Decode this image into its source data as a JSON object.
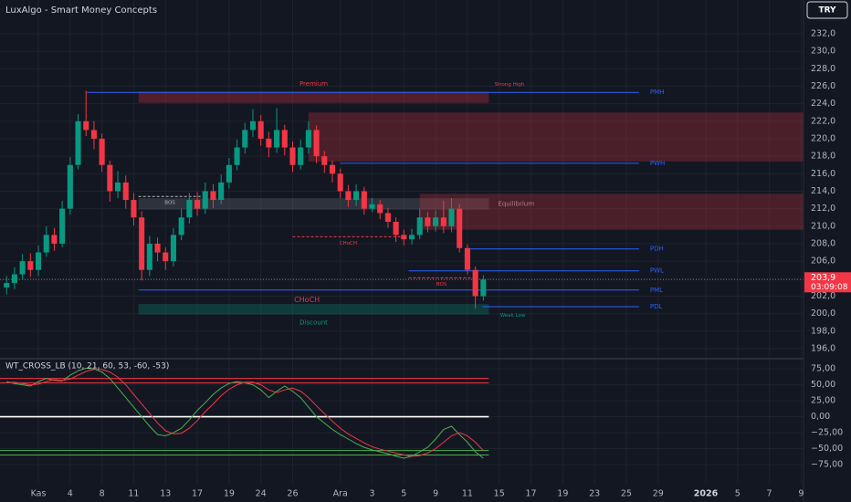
{
  "chart_data": {
    "type": "candlestick",
    "title": "LuxAlgo - Smart Money Concepts",
    "currency": "TRY",
    "last_price": {
      "value": 203.9,
      "label": "203,9"
    },
    "countdown": "03:09:08",
    "up_color": "#089981",
    "down_color": "#f23645",
    "grid": true,
    "xlim": [
      -4.83,
      96.3
    ],
    "xticks": [
      {
        "value": 0,
        "label": "Kas"
      },
      4,
      8,
      {
        "value": 12,
        "label": "11"
      },
      {
        "value": 16,
        "label": "13"
      },
      {
        "value": 20,
        "label": "17"
      },
      {
        "value": 24,
        "label": "19"
      },
      {
        "value": 28,
        "label": "24"
      },
      {
        "value": 32,
        "label": "26"
      },
      {
        "value": 38,
        "label": "Ara"
      },
      {
        "value": 42,
        "label": "3"
      },
      {
        "value": 46,
        "label": "5"
      },
      {
        "value": 50,
        "label": "9"
      },
      {
        "value": 54,
        "label": "11"
      },
      {
        "value": 58,
        "label": "15"
      },
      {
        "value": 62,
        "label": "17"
      },
      {
        "value": 66,
        "label": "19"
      },
      {
        "value": 70,
        "label": "23"
      },
      {
        "value": 74,
        "label": "25"
      },
      {
        "value": 78,
        "label": "29"
      },
      {
        "value": 84,
        "label": "2026"
      },
      {
        "value": 88,
        "label": "5"
      },
      {
        "value": 92,
        "label": "7"
      },
      {
        "value": 96,
        "label": "9"
      }
    ],
    "ylim": [
      194.85,
      235.86
    ],
    "yticks": [
      {
        "value": 196,
        "label": "196,0"
      },
      {
        "value": 198,
        "label": "198,0"
      },
      {
        "value": 200,
        "label": "200,0"
      },
      {
        "value": 202,
        "label": "202,0"
      },
      {
        "value": 204,
        "label": "204,0"
      },
      {
        "value": 206,
        "label": "206,0"
      },
      {
        "value": 208,
        "label": "208,0"
      },
      {
        "value": 210,
        "label": "210,0"
      },
      {
        "value": 212,
        "label": "212,0"
      },
      {
        "value": 214,
        "label": "214,0"
      },
      {
        "value": 216,
        "label": "216,0"
      },
      {
        "value": 218,
        "label": "218,0"
      },
      {
        "value": 220,
        "label": "220,0"
      },
      {
        "value": 222,
        "label": "222,0"
      },
      {
        "value": 224,
        "label": "224,0"
      },
      {
        "value": 226,
        "label": "226,0"
      },
      {
        "value": 228,
        "label": "228,0"
      },
      {
        "value": 230,
        "label": "230,0"
      },
      {
        "value": 232,
        "label": "232,0"
      }
    ],
    "x": [
      -4,
      -3,
      -2,
      -1,
      0,
      1,
      2,
      3,
      4,
      5,
      6,
      7,
      8,
      9,
      10,
      11,
      12,
      13,
      14,
      15,
      16,
      17,
      18,
      19,
      20,
      21,
      22,
      23,
      24,
      25,
      26,
      27,
      28,
      29,
      30,
      31,
      32,
      33,
      34,
      35,
      36,
      37,
      38,
      39,
      40,
      41,
      42,
      43,
      44,
      45,
      46,
      47,
      48,
      49,
      50,
      51,
      52,
      53,
      54,
      55,
      56
    ],
    "open": [
      203,
      203.5,
      204.5,
      206,
      205,
      207,
      209,
      208,
      212,
      217,
      222,
      221,
      220,
      217,
      214,
      215,
      213,
      211,
      205,
      208,
      207,
      206,
      209,
      211,
      213,
      212,
      214,
      213,
      215,
      217,
      219,
      221,
      222,
      220,
      219,
      221,
      219,
      217,
      219,
      221,
      218,
      217,
      216,
      214,
      213,
      214,
      212,
      212.5,
      211.5,
      210.5,
      209,
      208.5,
      209,
      211,
      210,
      211,
      210,
      212,
      207.5,
      205,
      202
    ],
    "high": [
      204.3,
      205.3,
      206.8,
      206.9,
      207.8,
      210,
      209.8,
      212.9,
      217.9,
      222.8,
      225.5,
      222,
      220.6,
      217.5,
      216.3,
      215.8,
      213.8,
      211.7,
      208.9,
      208.7,
      207.6,
      209.8,
      212,
      213.8,
      213.9,
      215,
      214.8,
      215.9,
      217.8,
      219.9,
      221.8,
      223.4,
      222.7,
      220.8,
      223.5,
      221.6,
      219.7,
      219.9,
      222,
      221.5,
      218.6,
      217.5,
      216.6,
      214.7,
      214.8,
      214.5,
      213.2,
      213,
      212.1,
      211,
      209.6,
      209.7,
      212,
      211.6,
      211.8,
      212.9,
      213.2,
      212.5,
      207.9,
      205.4,
      204.4
    ],
    "low": [
      202.2,
      202.8,
      203.9,
      204.2,
      204.3,
      206.5,
      207.2,
      207.6,
      211.3,
      216.5,
      220.3,
      218.8,
      216.2,
      212.8,
      213.2,
      212,
      210.1,
      203.8,
      204.3,
      206,
      205,
      205.4,
      208.4,
      210.3,
      211.2,
      211.4,
      212.1,
      212.5,
      214.3,
      216.4,
      218.3,
      220.2,
      219.2,
      217.9,
      218.4,
      218.1,
      216.2,
      216.5,
      218.3,
      217.2,
      216.1,
      215,
      213.2,
      212.2,
      212.3,
      211.3,
      211.6,
      210.8,
      209.8,
      208.2,
      207.8,
      207.9,
      208.5,
      209.3,
      209.4,
      209.2,
      209.3,
      207,
      204.5,
      200.6,
      201.5
    ],
    "close": [
      203.5,
      204.5,
      206,
      205,
      207,
      209,
      208,
      212,
      217,
      222,
      221,
      220,
      217,
      214,
      215,
      213,
      211,
      205,
      208,
      207,
      206,
      209,
      211,
      213,
      212,
      214,
      213,
      215,
      217,
      219,
      221,
      222,
      220,
      219,
      221,
      219,
      217,
      219,
      221,
      218,
      217,
      216,
      214,
      213,
      214,
      212,
      212.5,
      211.5,
      210.5,
      209,
      208.5,
      209,
      211,
      210,
      211,
      210,
      212,
      207.5,
      205,
      202,
      203.9
    ],
    "zones": [
      {
        "name": "Premium",
        "range": [
          224.1,
          225.4
        ],
        "x": [
          12.6,
          56.7
        ],
        "color": "#f23645"
      },
      {
        "name": "Equilibrium",
        "range": [
          211.9,
          213.2
        ],
        "x": [
          12.6,
          56.7
        ],
        "color": "#787b86"
      },
      {
        "name": "Discount",
        "range": [
          199.9,
          201.1
        ],
        "x": [
          12.6,
          56.7
        ],
        "color": "#089981"
      },
      {
        "range": [
          217.4,
          223.0
        ],
        "x": [
          34.0,
          96.3
        ],
        "color": "#f23645"
      },
      {
        "range": [
          209.6,
          213.7
        ],
        "x": [
          48.0,
          96.3
        ],
        "color": "#f23645"
      }
    ],
    "levels": [
      {
        "name": "PMH",
        "value": 225.3,
        "x": [
          6.1,
          75.6
        ]
      },
      {
        "name": "PWH",
        "value": 217.2,
        "x": [
          38.0,
          75.6
        ]
      },
      {
        "name": "PDH",
        "value": 207.4,
        "x": [
          53.8,
          75.6
        ]
      },
      {
        "name": "PWL",
        "value": 204.9,
        "x": [
          46.6,
          75.6
        ]
      },
      {
        "name": "PML",
        "value": 202.7,
        "x": [
          12.6,
          75.6
        ]
      },
      {
        "name": "PDL",
        "value": 200.8,
        "x": [
          55.9,
          75.6
        ]
      }
    ],
    "structures": [
      {
        "name": "BOS",
        "value": 213.4,
        "x": [
          12.6,
          20.5
        ],
        "color": "#b2b5be"
      },
      {
        "name": "CHoCH",
        "value": 208.8,
        "x": [
          32.0,
          46.0
        ],
        "color": "#f23645"
      },
      {
        "name": "BOS",
        "value": 204.1,
        "x": [
          46.6,
          54.9
        ],
        "color": "#f23645"
      }
    ],
    "annotations": [
      {
        "text": "Strong High",
        "x": 59.3,
        "price": 226.2,
        "color": "#f23645"
      },
      {
        "text": "Weak Low",
        "x": 59.7,
        "price": 199.8,
        "color": "#089981"
      },
      {
        "text": "CHoCH",
        "x": 33.8,
        "price": 201.6,
        "color": "#f23645"
      }
    ],
    "oscillator": {
      "title": "WT_CROSS_LB (10, 21, 60, 53, -60, -53)",
      "y2lim": [
        -105,
        88
      ],
      "y2ticks": [
        {
          "value": 75,
          "label": "75,00"
        },
        {
          "value": 50,
          "label": "50,00"
        },
        {
          "value": 25,
          "label": "25,00"
        },
        {
          "value": 0,
          "label": "0,00"
        },
        {
          "value": -25,
          "label": "−25,00"
        },
        {
          "value": -50,
          "label": "−50,00"
        },
        {
          "value": -75,
          "label": "−75,00"
        }
      ],
      "levels": [
        {
          "value": 60,
          "color": "#f23645"
        },
        {
          "value": 53,
          "color": "#f23645"
        },
        {
          "value": 0,
          "color": "#ffffff"
        },
        {
          "value": -53,
          "color": "#4caf50"
        },
        {
          "value": -60,
          "color": "#4caf50"
        }
      ],
      "lines": [
        {
          "color": "#4caf50",
          "values": [
            55,
            52,
            50,
            48,
            55,
            60,
            57,
            56,
            65,
            72,
            76,
            75,
            70,
            60,
            45,
            30,
            15,
            0,
            -15,
            -28,
            -30,
            -25,
            -18,
            -5,
            10,
            22,
            35,
            45,
            52,
            55,
            53,
            50,
            42,
            30,
            40,
            48,
            40,
            30,
            15,
            0,
            -10,
            -20,
            -28,
            -35,
            -42,
            -48,
            -52,
            -55,
            -58,
            -62,
            -65,
            -62,
            -55,
            -48,
            -35,
            -20,
            -15,
            -28,
            -40,
            -55,
            -65
          ]
        },
        {
          "color": "#f23645",
          "values": [
            53,
            54,
            52,
            50,
            51,
            55,
            58,
            57,
            59,
            65,
            71,
            74,
            74,
            70,
            62,
            50,
            35,
            20,
            5,
            -10,
            -22,
            -27,
            -26,
            -18,
            -6,
            8,
            20,
            33,
            43,
            50,
            54,
            54,
            50,
            42,
            38,
            42,
            45,
            40,
            30,
            17,
            5,
            -7,
            -18,
            -27,
            -34,
            -41,
            -47,
            -51,
            -54,
            -57,
            -60,
            -62,
            -61,
            -57,
            -50,
            -40,
            -30,
            -25,
            -30,
            -40,
            -53
          ]
        }
      ]
    }
  }
}
